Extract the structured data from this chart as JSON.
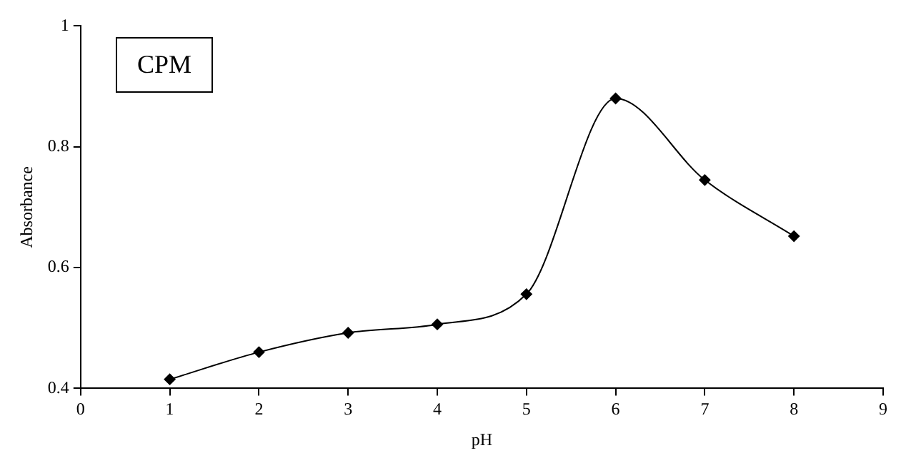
{
  "chart_data": {
    "type": "line",
    "xlabel": "pH",
    "ylabel": "Absorbance",
    "annotations": [
      "CPM"
    ],
    "x": [
      1,
      2,
      3,
      4,
      5,
      6,
      7,
      8
    ],
    "series": [
      {
        "color": "#000000",
        "values": [
          0.415,
          0.46,
          0.492,
          0.506,
          0.556,
          0.88,
          0.745,
          0.652
        ]
      }
    ],
    "xlim": [
      0,
      9
    ],
    "xticks": [
      0,
      1,
      2,
      3,
      4,
      5,
      6,
      7,
      8,
      9
    ],
    "ylim": [
      0.4,
      1
    ],
    "yticks": [
      0.4,
      0.6,
      0.8,
      1
    ],
    "grid": false,
    "legend": false,
    "marker": "diamond",
    "line_style": "solid"
  }
}
